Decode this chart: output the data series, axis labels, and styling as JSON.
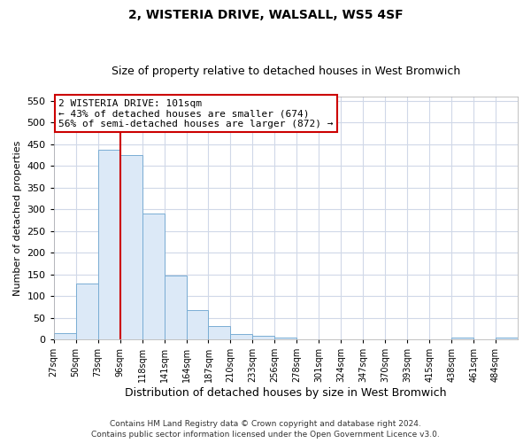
{
  "title": "2, WISTERIA DRIVE, WALSALL, WS5 4SF",
  "subtitle": "Size of property relative to detached houses in West Bromwich",
  "bar_values": [
    15,
    128,
    438,
    425,
    291,
    147,
    68,
    30,
    13,
    8,
    4,
    0,
    0,
    0,
    0,
    0,
    0,
    0,
    4,
    0,
    4
  ],
  "bar_labels": [
    "27sqm",
    "50sqm",
    "73sqm",
    "96sqm",
    "118sqm",
    "141sqm",
    "164sqm",
    "187sqm",
    "210sqm",
    "233sqm",
    "256sqm",
    "278sqm",
    "301sqm",
    "324sqm",
    "347sqm",
    "370sqm",
    "393sqm",
    "415sqm",
    "438sqm",
    "461sqm",
    "484sqm"
  ],
  "bar_color": "#dce9f7",
  "bar_edge_color": "#7aadd4",
  "vline_color": "#cc0000",
  "xlabel": "Distribution of detached houses by size in West Bromwich",
  "ylabel": "Number of detached properties",
  "ylim": [
    0,
    560
  ],
  "yticks": [
    0,
    50,
    100,
    150,
    200,
    250,
    300,
    350,
    400,
    450,
    500,
    550
  ],
  "annotation_title": "2 WISTERIA DRIVE: 101sqm",
  "annotation_line1": "← 43% of detached houses are smaller (674)",
  "annotation_line2": "56% of semi-detached houses are larger (872) →",
  "annotation_box_color": "#cc0000",
  "footer1": "Contains HM Land Registry data © Crown copyright and database right 2024.",
  "footer2": "Contains public sector information licensed under the Open Government Licence v3.0.",
  "grid_color": "#d0d8e8",
  "title_fontsize": 10,
  "subtitle_fontsize": 9,
  "ylabel_fontsize": 8,
  "xlabel_fontsize": 9,
  "ytick_fontsize": 8,
  "xtick_fontsize": 7,
  "footer_fontsize": 6.5
}
